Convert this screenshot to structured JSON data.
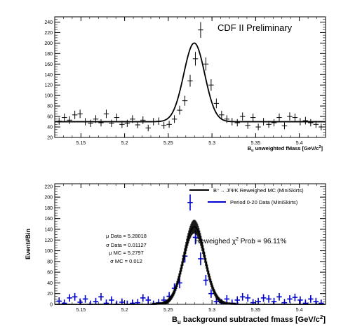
{
  "chart_data": [
    {
      "type": "scatter",
      "title": "CDF II Preliminary",
      "xlabel_main": "B",
      "xlabel_sub": "u",
      "xlabel_rest": " unweighted fMass [GeV/c",
      "xlabel_sup": "2",
      "xlabel_end": "]",
      "xlim": [
        5.12,
        5.43
      ],
      "ylim": [
        20,
        250
      ],
      "xticks": [
        "5.15",
        "5.2",
        "5.25",
        "5.3",
        "5.35",
        "5.4"
      ],
      "yticks": [
        "20",
        "40",
        "60",
        "80",
        "100",
        "120",
        "140",
        "160",
        "180",
        "200",
        "220",
        "240"
      ],
      "series": [
        {
          "kind": "points",
          "x": [
            5.125,
            5.131,
            5.137,
            5.143,
            5.149,
            5.155,
            5.161,
            5.167,
            5.173,
            5.179,
            5.185,
            5.191,
            5.197,
            5.203,
            5.209,
            5.215,
            5.221,
            5.227,
            5.233,
            5.239,
            5.245,
            5.251,
            5.257,
            5.263,
            5.269,
            5.275,
            5.281,
            5.287,
            5.293,
            5.299,
            5.305,
            5.311,
            5.317,
            5.323,
            5.329,
            5.335,
            5.341,
            5.347,
            5.353,
            5.359,
            5.365,
            5.371,
            5.377,
            5.383,
            5.389,
            5.395,
            5.401,
            5.407,
            5.413,
            5.419,
            5.425
          ],
          "y": [
            51,
            58,
            53,
            63,
            65,
            50,
            47,
            55,
            48,
            65,
            47,
            58,
            45,
            47,
            55,
            44,
            53,
            38,
            50,
            51,
            43,
            45,
            55,
            72,
            90,
            128,
            170,
            225,
            160,
            120,
            85,
            63,
            55,
            50,
            48,
            60,
            43,
            58,
            40,
            50,
            45,
            48,
            58,
            42,
            60,
            58,
            50,
            52,
            48,
            45,
            40
          ],
          "yerr": [
            7,
            7.6,
            7.3,
            8,
            8,
            7,
            6.9,
            7.4,
            6.9,
            8,
            6.9,
            7.6,
            6.7,
            6.9,
            7.4,
            6.6,
            7.3,
            6.2,
            7.1,
            7.1,
            6.6,
            6.7,
            7.4,
            8.5,
            9.5,
            11.3,
            13,
            15,
            12.6,
            11,
            9.2,
            7.9,
            7.4,
            7.1,
            6.9,
            7.7,
            6.6,
            7.6,
            6.3,
            7.1,
            6.7,
            6.9,
            7.6,
            6.5,
            7.7,
            7.6,
            7.1,
            7.2,
            6.9,
            6.7,
            6.3
          ]
        },
        {
          "kind": "fit",
          "model": "gaussian+constant",
          "mean": 5.2797,
          "sigma": 0.012,
          "amplitude": 150,
          "baseline": 50
        }
      ]
    },
    {
      "type": "scatter",
      "ylabel": "Event#Bin",
      "xlabel_main": "B",
      "xlabel_sub": "u",
      "xlabel_rest": " background subtracted fmass [GeV/c",
      "xlabel_sup": "2",
      "xlabel_end": "]",
      "xlim": [
        5.12,
        5.43
      ],
      "ylim": [
        0,
        225
      ],
      "xticks": [
        "5.15",
        "5.2",
        "5.25",
        "5.3",
        "5.35",
        "5.4"
      ],
      "yticks": [
        "0",
        "20",
        "40",
        "60",
        "80",
        "100",
        "120",
        "140",
        "160",
        "180",
        "200",
        "220"
      ],
      "legend_position": "top-right",
      "legend": [
        {
          "label": "B⁺→ J/ΨK Reweighed MC (MiniSkirts)",
          "color": "#000000"
        },
        {
          "label": "Period 0-20 Data (MiniSkirts)",
          "color": "#0000cc"
        }
      ],
      "stats": [
        "μ Data = 5.28018",
        "σ Data =  0.01127",
        "μ MC = 5.2797",
        "σ MC =  0.012"
      ],
      "annotation_pre": "Reweighed  χ",
      "annotation_sup": "2",
      "annotation_post": " Prob = 96.11%",
      "series": [
        {
          "name": "Period 0-20 Data (MiniSkirts)",
          "color": "#0000cc",
          "x": [
            5.125,
            5.131,
            5.137,
            5.143,
            5.149,
            5.155,
            5.161,
            5.167,
            5.173,
            5.179,
            5.185,
            5.191,
            5.197,
            5.203,
            5.209,
            5.215,
            5.221,
            5.227,
            5.233,
            5.239,
            5.245,
            5.251,
            5.257,
            5.263,
            5.269,
            5.275,
            5.281,
            5.287,
            5.293,
            5.299,
            5.305,
            5.311,
            5.317,
            5.323,
            5.329,
            5.335,
            5.341,
            5.347,
            5.353,
            5.359,
            5.365,
            5.371,
            5.377,
            5.383,
            5.389,
            5.395,
            5.401,
            5.407,
            5.413,
            5.419,
            5.425
          ],
          "y": [
            6,
            2,
            12,
            14,
            4,
            10,
            0,
            5,
            14,
            2,
            8,
            0,
            4,
            0,
            2,
            3,
            12,
            8,
            0,
            3,
            8,
            15,
            30,
            40,
            90,
            190,
            125,
            85,
            45,
            20,
            5,
            3,
            10,
            2,
            8,
            14,
            12,
            3,
            5,
            12,
            10,
            5,
            14,
            3,
            10,
            13,
            8,
            2,
            10,
            5,
            2
          ],
          "yerr": [
            7,
            7,
            7,
            7,
            7,
            7,
            7,
            7,
            7,
            7,
            7,
            7,
            7,
            7,
            7,
            7,
            7,
            7,
            7,
            7,
            7,
            8,
            9,
            10,
            12,
            15,
            13,
            12,
            10,
            8,
            7,
            7,
            7,
            7,
            7,
            7,
            7,
            7,
            7,
            7,
            7,
            7,
            7,
            7,
            7,
            7,
            7,
            7,
            7,
            7,
            7
          ]
        },
        {
          "name": "B⁺→ J/ΨK Reweighed MC (MiniSkirts)",
          "color": "#000000",
          "model": "gaussian",
          "mean": 5.2797,
          "sigma": 0.012,
          "amplitude": 145
        }
      ]
    }
  ]
}
